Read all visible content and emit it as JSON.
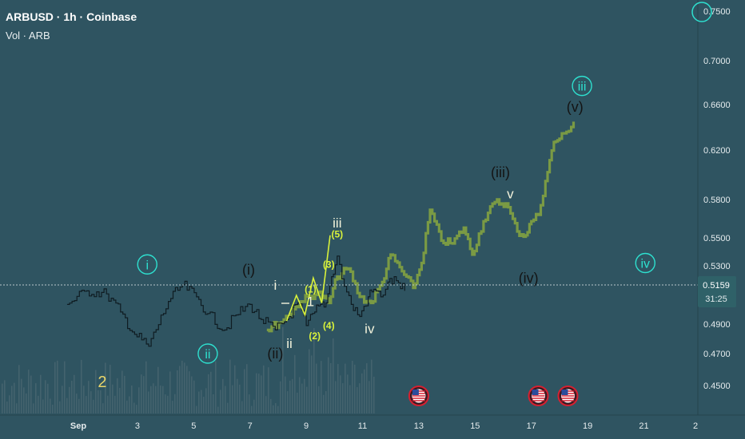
{
  "header": {
    "symbol_line": "ARBUSD · 1h · Coinbase",
    "indicator_line": "Vol · ARB"
  },
  "current_price": {
    "price": "0.5159",
    "countdown": "31:25"
  },
  "colors": {
    "background": "#2f5461",
    "candles": "#0f1c22",
    "projection": "#7a9a44",
    "wave_yellow": "#d9f23b",
    "wave_cyan": "#2ee0cf",
    "wave_black": "#141414",
    "wave_white": "#f3f3dc",
    "badge_red": "#d62030"
  },
  "chart_data": {
    "type": "line",
    "title": "ARBUSD · 1h · Coinbase",
    "subtitle": "Vol · ARB",
    "y_ticks": [
      "0.7500",
      "0.7000",
      "0.6600",
      "0.6200",
      "0.5800",
      "0.5500",
      "0.5300",
      "0.5159",
      "0.4900",
      "0.4700",
      "0.4500"
    ],
    "x_ticks": [
      "Sep",
      "3",
      "5",
      "7",
      "9",
      "11",
      "13",
      "15",
      "17",
      "19",
      "21",
      "2"
    ],
    "ylim": [
      0.44,
      0.76
    ],
    "current_price": 0.5159,
    "price_series": {
      "name": "ARBUSD",
      "x_day": [
        -0.4,
        0.3,
        1.0,
        1.5,
        2.0,
        2.5,
        3.2,
        3.7,
        4.2,
        4.6,
        5.2,
        5.6,
        6.1,
        6.5,
        7.0,
        7.4,
        7.8,
        8.1,
        8.4,
        8.6,
        8.8,
        9.0,
        9.2,
        9.45,
        9.7,
        10.0,
        10.3,
        10.5,
        10.75,
        11.0,
        11.3,
        11.6
      ],
      "y": [
        0.503,
        0.512,
        0.51,
        0.498,
        0.483,
        0.475,
        0.505,
        0.516,
        0.508,
        0.497,
        0.486,
        0.496,
        0.503,
        0.493,
        0.486,
        0.493,
        0.504,
        0.489,
        0.498,
        0.503,
        0.504,
        0.522,
        0.537,
        0.515,
        0.503,
        0.495,
        0.508,
        0.513,
        0.508,
        0.518,
        0.519,
        0.512
      ]
    },
    "projection_series": {
      "name": "projection",
      "x_day": [
        6.7,
        7.3,
        7.9,
        8.5,
        8.9,
        9.2,
        9.6,
        10.0,
        10.4,
        10.8,
        11.1,
        11.5,
        11.9,
        12.2,
        12.5,
        12.9,
        13.3,
        13.7,
        14.0,
        14.4,
        14.8,
        15.2,
        15.6,
        15.9,
        16.1,
        16.35,
        16.6,
        16.9,
        17.1,
        17.35,
        17.6
      ],
      "y": [
        0.486,
        0.493,
        0.505,
        0.511,
        0.504,
        0.522,
        0.528,
        0.508,
        0.504,
        0.518,
        0.538,
        0.526,
        0.514,
        0.532,
        0.572,
        0.548,
        0.546,
        0.558,
        0.538,
        0.563,
        0.578,
        0.577,
        0.555,
        0.552,
        0.563,
        0.568,
        0.595,
        0.627,
        0.63,
        0.636,
        0.645
      ]
    },
    "wave_paths": [
      {
        "name": "yellow subwave",
        "x_day": [
          7.4,
          7.75,
          8.05,
          8.35,
          8.65,
          8.95
        ],
        "y": [
          0.492,
          0.509,
          0.496,
          0.521,
          0.504,
          0.552
        ]
      }
    ],
    "wave_labels": [
      {
        "text": "i",
        "style": "circle-cyan",
        "x_day": 2.45,
        "y": 0.531
      },
      {
        "text": "ii",
        "style": "circle-cyan",
        "x_day": 4.6,
        "y": 0.47
      },
      {
        "text": "iii",
        "style": "circle-cyan",
        "x_day": 17.9,
        "y": 0.677
      },
      {
        "text": "iv",
        "style": "circle-cyan",
        "x_day": 20.15,
        "y": 0.532
      },
      {
        "text": "(i)",
        "style": "black",
        "x_day": 6.05,
        "y": 0.527
      },
      {
        "text": "(ii)",
        "style": "black",
        "x_day": 7.0,
        "y": 0.47
      },
      {
        "text": "(iii)",
        "style": "black",
        "x_day": 15.0,
        "y": 0.602
      },
      {
        "text": "(iv)",
        "style": "black",
        "x_day": 16.0,
        "y": 0.521
      },
      {
        "text": "(v)",
        "style": "black",
        "x_day": 17.65,
        "y": 0.658
      },
      {
        "text": "i",
        "style": "white",
        "x_day": 7.0,
        "y": 0.516
      },
      {
        "text": "ii",
        "style": "white",
        "x_day": 7.5,
        "y": 0.477
      },
      {
        "text": "iii",
        "style": "white",
        "x_day": 9.2,
        "y": 0.562
      },
      {
        "text": "iv",
        "style": "white",
        "x_day": 10.35,
        "y": 0.487
      },
      {
        "text": "v",
        "style": "white",
        "x_day": 15.35,
        "y": 0.585
      },
      {
        "text": "1",
        "style": "white",
        "x_day": 8.25,
        "y": 0.505
      },
      {
        "text": "2",
        "style": "yellow-big",
        "x_day": 0.85,
        "y": 0.452
      },
      {
        "text": "(1)",
        "style": "yellow",
        "x_day": 8.25,
        "y": 0.514
      },
      {
        "text": "(2)",
        "style": "yellow",
        "x_day": 8.4,
        "y": 0.483
      },
      {
        "text": "(3)",
        "style": "yellow",
        "x_day": 8.9,
        "y": 0.532
      },
      {
        "text": "(4)",
        "style": "yellow",
        "x_day": 8.9,
        "y": 0.49
      },
      {
        "text": "(5)",
        "style": "yellow",
        "x_day": 9.2,
        "y": 0.554
      }
    ],
    "event_badges": [
      {
        "name": "us-flag-icon",
        "x_day": 12.1
      },
      {
        "name": "us-flag-icon",
        "x_day": 16.35
      },
      {
        "name": "us-flag-icon",
        "x_day": 17.4
      }
    ],
    "grid": false
  }
}
